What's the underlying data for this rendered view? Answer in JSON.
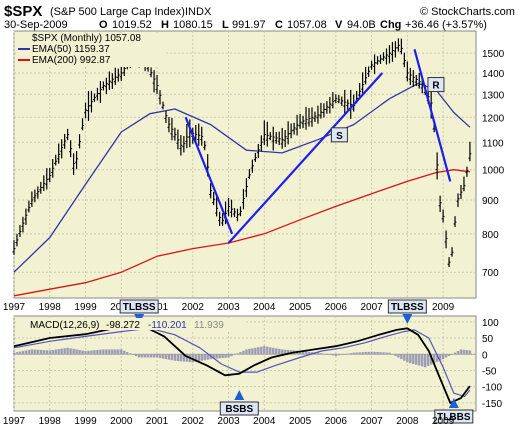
{
  "header": {
    "symbol": "$SPX",
    "name": "(S&P 500 Large Cap Index)",
    "exchange": "INDX",
    "watermark": "© StockCharts.com",
    "date": "30-Sep-2009",
    "o_label": "O",
    "o_value": "1019.52",
    "h_label": "H",
    "h_value": "1080.15",
    "l_label": "L",
    "l_value": "991.97",
    "c_label": "C",
    "c_value": "1057.08",
    "v_label": "V",
    "v_value": "94.0B",
    "chg_label": "Chg",
    "chg_value": "+36.46 (+3.57%)"
  },
  "colors": {
    "panel_bg": "#f2f2d2",
    "price_bar": "#000000",
    "ema50": "#3333aa",
    "ema200": "#dd1111",
    "trendline": "#1e1eee",
    "macd": "#000000",
    "signal": "#5555bb",
    "histogram": "#9c9cb4",
    "grid": "#c8c8b4",
    "annot_box": "#dde6f7"
  },
  "chart_data": [
    {
      "type": "line",
      "title": "$SPX (S&P 500 Large Cap Index) INDX",
      "subtitle": "$SPX (Monthly) 1057.08",
      "y_scale": "log",
      "ylim": [
        640,
        1620
      ],
      "xlim": [
        1997.0,
        2009.92
      ],
      "y_ticks": [
        700,
        800,
        900,
        1000,
        1100,
        1200,
        1300,
        1400,
        1500
      ],
      "x_ticks": [
        "1997",
        "1998",
        "1999",
        "2000",
        "2001",
        "2002",
        "2003",
        "2004",
        "2005",
        "2006",
        "2007",
        "2008",
        "2009"
      ],
      "grid": true,
      "legend_placement": "top-left",
      "series": [
        {
          "name": "$SPX (Monthly) 1057.08",
          "style": "bars",
          "x": [
            1997.0,
            1997.5,
            1998.0,
            1998.5,
            1998.7,
            1999.0,
            1999.5,
            2000.0,
            2000.3,
            2000.7,
            2001.0,
            2001.3,
            2001.7,
            2001.9,
            2002.3,
            2002.5,
            2002.8,
            2003.0,
            2003.3,
            2003.6,
            2004.0,
            2004.5,
            2005.0,
            2005.5,
            2006.0,
            2006.5,
            2007.0,
            2007.5,
            2007.8,
            2008.0,
            2008.4,
            2008.7,
            2008.9,
            2009.0,
            2009.2,
            2009.4,
            2009.6,
            2009.75
          ],
          "y": [
            760,
            900,
            980,
            1130,
            1000,
            1230,
            1340,
            1400,
            1480,
            1450,
            1340,
            1180,
            1080,
            1140,
            1120,
            930,
            830,
            880,
            850,
            990,
            1130,
            1110,
            1180,
            1210,
            1280,
            1250,
            1440,
            1500,
            1550,
            1400,
            1350,
            1250,
            900,
            850,
            700,
            900,
            950,
            1057.08
          ]
        },
        {
          "name": "EMA(50) 1159.37",
          "x": [
            1997.0,
            1998.0,
            1999.0,
            2000.0,
            2000.8,
            2001.5,
            2002.5,
            2003.5,
            2004.5,
            2005.5,
            2006.5,
            2007.5,
            2008.3,
            2008.8,
            2009.3,
            2009.75
          ],
          "y": [
            700,
            790,
            950,
            1140,
            1215,
            1235,
            1170,
            1070,
            1060,
            1110,
            1170,
            1280,
            1350,
            1320,
            1220,
            1159.37
          ]
        },
        {
          "name": "EMA(200) 992.87",
          "x": [
            1997.0,
            1998.0,
            1999.0,
            2000.0,
            2001.0,
            2002.0,
            2003.0,
            2004.0,
            2005.0,
            2006.0,
            2007.0,
            2008.0,
            2008.8,
            2009.3,
            2009.75
          ],
          "y": [
            645,
            660,
            675,
            700,
            740,
            760,
            775,
            800,
            840,
            880,
            920,
            960,
            990,
            1000,
            992.87
          ]
        }
      ],
      "trendlines": [
        {
          "x": [
            2001.8,
            2003.1
          ],
          "y": [
            1200,
            800
          ]
        },
        {
          "x": [
            2003.0,
            2007.3
          ],
          "y": [
            775,
            1400
          ]
        },
        {
          "x": [
            2008.2,
            2009.2
          ],
          "y": [
            1520,
            960
          ]
        }
      ],
      "annotations": [
        {
          "text": "S",
          "x": 2006.1,
          "y": 1125
        },
        {
          "text": "R",
          "x": 2008.8,
          "y": 1340
        }
      ]
    },
    {
      "type": "line",
      "title": "MACD(12,26,9) -98.272, -110.201, 11.939",
      "ylim": [
        -175,
        118
      ],
      "y_ticks": [
        100,
        50,
        0,
        -50,
        -100,
        -150
      ],
      "x_ticks": [
        "1997",
        "1998",
        "1999",
        "2000",
        "2001",
        "2002",
        "2003",
        "2004",
        "2005",
        "2006",
        "2007",
        "2008",
        "2009"
      ],
      "legend": {
        "name": "MACD(12,26,9)",
        "v1": "-98.272",
        "v2": "-110.201",
        "v3": "11.939"
      },
      "series": [
        {
          "name": "MACD",
          "x": [
            1997.0,
            1998.0,
            1999.0,
            2000.0,
            2000.6,
            2001.2,
            2001.8,
            2002.4,
            2002.9,
            2003.3,
            2003.7,
            2004.2,
            2004.8,
            2005.4,
            2006.0,
            2006.6,
            2007.2,
            2007.7,
            2008.0,
            2008.3,
            2008.6,
            2008.9,
            2009.2,
            2009.5,
            2009.75
          ],
          "y": [
            25,
            50,
            62,
            85,
            88,
            55,
            -5,
            -35,
            -65,
            -60,
            -35,
            -10,
            5,
            15,
            25,
            40,
            60,
            75,
            80,
            60,
            10,
            -70,
            -150,
            -135,
            -98.272
          ]
        },
        {
          "name": "Signal",
          "x": [
            1997.0,
            1998.0,
            1999.0,
            2000.0,
            2000.8,
            2001.5,
            2002.2,
            2002.8,
            2003.3,
            2003.8,
            2004.3,
            2005.0,
            2005.6,
            2006.2,
            2006.8,
            2007.4,
            2007.9,
            2008.2,
            2008.6,
            2009.0,
            2009.3,
            2009.6,
            2009.75
          ],
          "y": [
            20,
            40,
            55,
            70,
            80,
            60,
            20,
            -30,
            -55,
            -55,
            -35,
            -10,
            10,
            20,
            35,
            55,
            70,
            75,
            50,
            -40,
            -120,
            -130,
            -110.201
          ]
        },
        {
          "name": "Histogram",
          "style": "bars",
          "x": [
            1997.0,
            1997.5,
            1998.0,
            1998.5,
            1999.0,
            1999.5,
            2000.0,
            2000.5,
            2001.0,
            2001.5,
            2002.0,
            2002.5,
            2003.0,
            2003.5,
            2004.0,
            2004.5,
            2005.0,
            2005.5,
            2006.0,
            2006.5,
            2007.0,
            2007.5,
            2008.0,
            2008.5,
            2009.0,
            2009.5,
            2009.75
          ],
          "y": [
            5,
            15,
            12,
            20,
            10,
            15,
            15,
            -10,
            -10,
            -20,
            -25,
            -15,
            -10,
            15,
            25,
            15,
            10,
            5,
            -5,
            5,
            8,
            5,
            -25,
            -40,
            -15,
            15,
            11.939
          ]
        }
      ],
      "annotations": [
        {
          "text": "TLBSS",
          "x": 2000.5,
          "y": 100,
          "arrow": "down"
        },
        {
          "text": "TLBSS",
          "x": 2008.0,
          "y": 100,
          "arrow": "down"
        },
        {
          "text": "BSBS",
          "x": 2003.3,
          "y": -160,
          "arrow": "up"
        },
        {
          "text": "TLBBS",
          "x": 2009.3,
          "y": -175,
          "arrow": "up"
        }
      ]
    }
  ]
}
